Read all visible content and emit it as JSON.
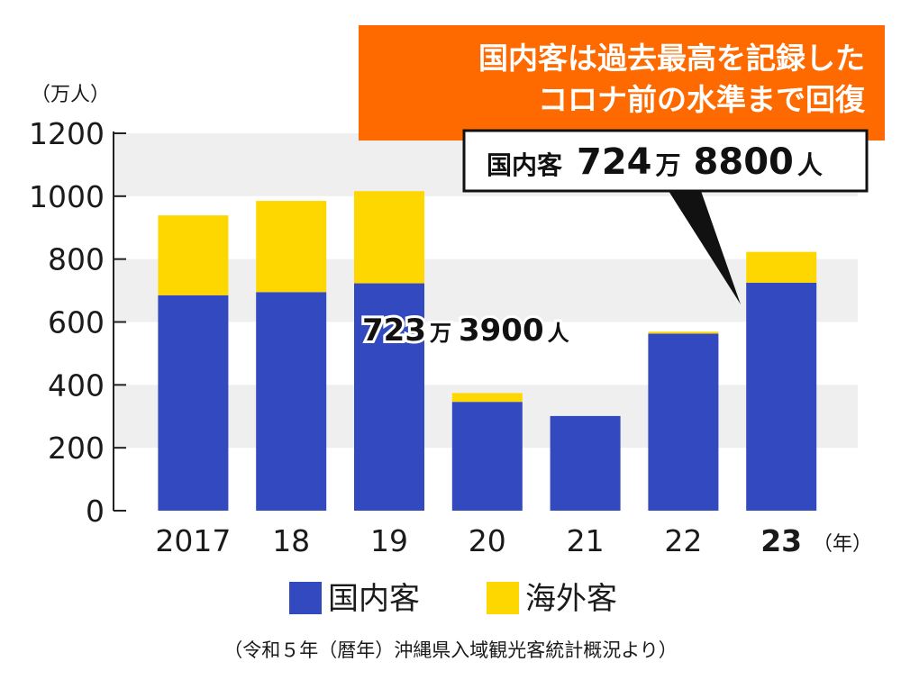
{
  "chart_data": {
    "type": "bar",
    "stacked": true,
    "title": "国内客は過去最高を記録した",
    "subtitle": "コロナ前の水準まで回復",
    "ylabel": "（万人）",
    "xlabel": "（年）",
    "ylim": [
      0,
      1200
    ],
    "yticks": [
      0,
      200,
      400,
      600,
      800,
      1000,
      1200
    ],
    "grid": "alternating horizontal bands",
    "categories": [
      "2017",
      "18",
      "19",
      "20",
      "21",
      "22",
      "23"
    ],
    "highlight_category": "23",
    "series": [
      {
        "name": "国内客",
        "color": "#3249c0",
        "values": [
          685,
          695,
          723,
          346,
          301,
          563,
          725
        ]
      },
      {
        "name": "海外客",
        "color": "#ffd700",
        "values": [
          254,
          290,
          293,
          28,
          0,
          6,
          98
        ]
      }
    ],
    "legend_position": "bottom",
    "annotations": {
      "callout_label": "国内客",
      "callout_value": "724万 8800人",
      "callout_value_main": "724",
      "callout_value_unit": "万",
      "callout_value_rest": "8800",
      "callout_value_suffix": "人",
      "bar_label_main": "723",
      "bar_label_unit": "万",
      "bar_label_rest": "3900",
      "bar_label_suffix": "人",
      "bar_label": "723万 3900人"
    },
    "source": "（令和５年（暦年）沖縄県入域観光客統計概況より）"
  },
  "colors": {
    "accent": "#ff6a00",
    "domestic": "#3249c0",
    "overseas": "#ffd700",
    "band": "#efefef"
  }
}
